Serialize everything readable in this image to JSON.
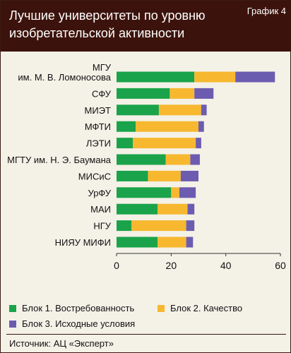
{
  "header": {
    "title_line1": "Лучшие университеты по уровню",
    "title_line2": "изобретательской активности",
    "chart_number": "График 4"
  },
  "chart_data": {
    "type": "bar",
    "orientation": "horizontal",
    "stacked": true,
    "title": "Лучшие университеты по уровню изобретательской активности",
    "categories": [
      [
        "МГУ",
        "им. М. В. Ломоносова"
      ],
      [
        "СФУ"
      ],
      [
        "МИЭТ"
      ],
      [
        "МФТИ"
      ],
      [
        "ЛЭТИ"
      ],
      [
        "МГТУ им. Н. Э. Баумана"
      ],
      [
        "МИСиС"
      ],
      [
        "УрФУ"
      ],
      [
        "МАИ"
      ],
      [
        "НГУ"
      ],
      [
        "НИЯУ МИФИ"
      ]
    ],
    "series": [
      {
        "name": "Блок 1. Востребованность",
        "color": "#1aa34a",
        "values": [
          28.5,
          19.5,
          15.5,
          7,
          6,
          18,
          11.5,
          20,
          15,
          5.5,
          15
        ]
      },
      {
        "name": "Блок 2. Качество",
        "color": "#f7b830",
        "values": [
          15,
          9,
          15.5,
          23,
          23,
          9,
          12,
          3,
          11,
          20,
          10.5
        ]
      },
      {
        "name": "Блок 3. Исходные условия",
        "color": "#6c5cb0",
        "values": [
          14.5,
          7,
          2,
          2,
          2,
          3.5,
          6.5,
          6,
          2.5,
          3,
          2.5
        ]
      }
    ],
    "xlim": [
      0,
      60
    ],
    "xticks": [
      0,
      20,
      40,
      60
    ],
    "grid": false,
    "legend_position": "bottom"
  },
  "source": "Источник: АЦ «Эксперт»"
}
